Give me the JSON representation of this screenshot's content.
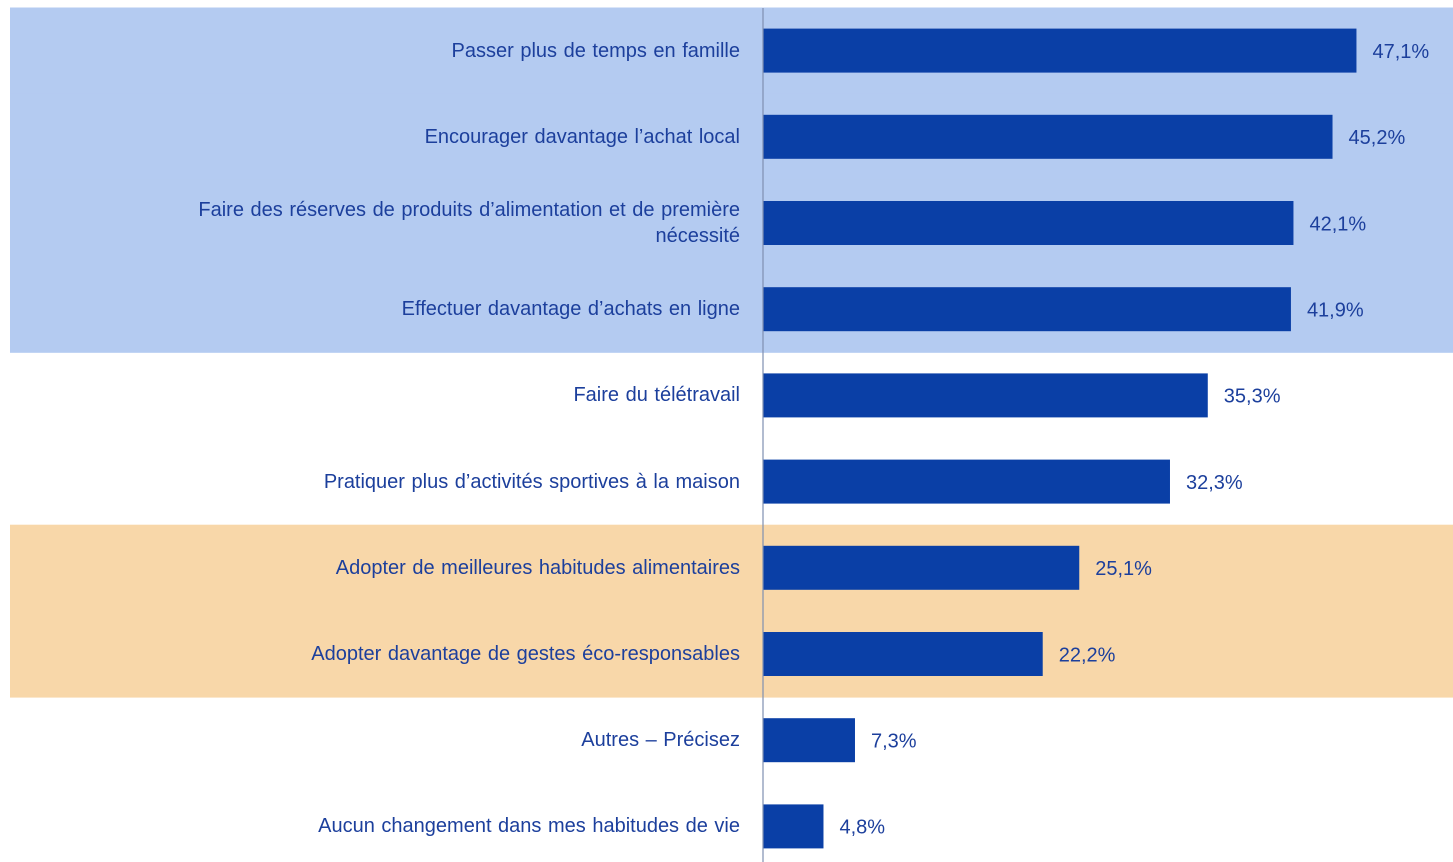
{
  "chart_data": {
    "type": "bar",
    "orientation": "horizontal",
    "categories": [
      "Passer plus de temps en famille",
      "Encourager davantage  l’achat local",
      "Faire des réserves  de produits d’alimentation et de première nécessité",
      "Effectuer davantage  d’achats en ligne",
      "Faire du télétravail",
      "Pratiquer plus d’activités sportives à la maison",
      "Adopter de meilleures habitudes alimentaires",
      "Adopter davantage de gestes éco-responsables",
      "Autres – Précisez",
      "Aucun changement dans mes habitudes de vie"
    ],
    "values": [
      47.1,
      45.2,
      42.1,
      41.9,
      35.3,
      32.3,
      25.1,
      22.2,
      7.3,
      4.8
    ],
    "value_labels": [
      "47,1%",
      "45,2%",
      "42,1%",
      "41,9%",
      "35,3%",
      "32,3%",
      "25,1%",
      "22,2%",
      "7,3%",
      "4,8%"
    ],
    "color": "#0a3fa6",
    "row_colors": [
      "#b4cbf1",
      "#b4cbf1",
      "#b4cbf1",
      "#b4cbf1",
      null,
      null,
      "#f8d7a9",
      "#f8d7a9",
      null,
      null
    ]
  }
}
